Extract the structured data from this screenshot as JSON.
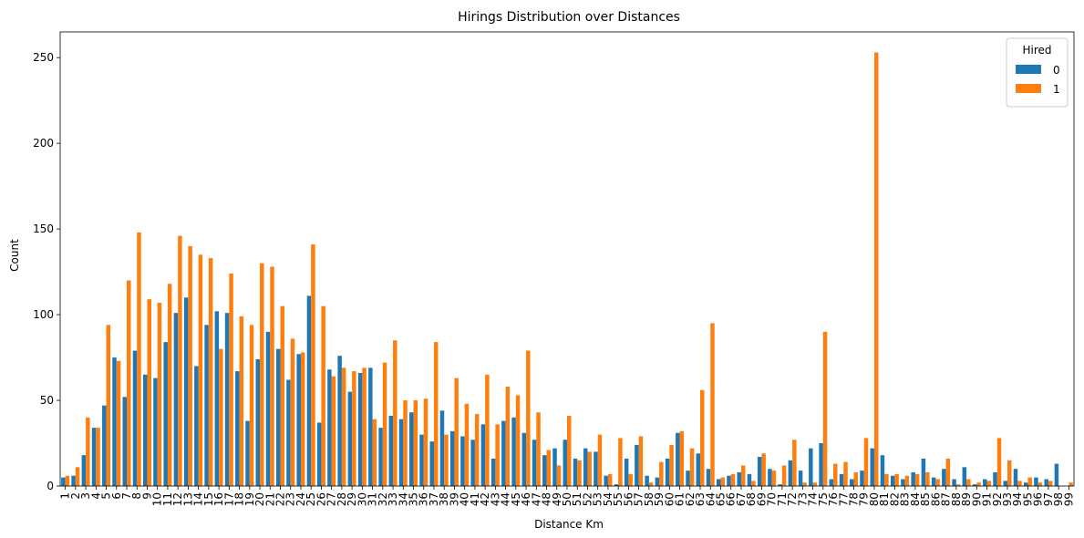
{
  "chart_data": {
    "type": "bar",
    "title": "Hirings Distribution over Distances",
    "xlabel": "Distance Km",
    "ylabel": "Count",
    "ylim": [
      0,
      265
    ],
    "yticks": [
      0,
      50,
      100,
      150,
      200,
      250
    ],
    "grid": false,
    "legend": {
      "title": "Hired",
      "placement": "top-right"
    },
    "categories": [
      "1",
      "2",
      "3",
      "4",
      "5",
      "6",
      "7",
      "8",
      "9",
      "10",
      "11",
      "12",
      "13",
      "14",
      "15",
      "16",
      "17",
      "18",
      "19",
      "20",
      "21",
      "22",
      "23",
      "24",
      "25",
      "26",
      "27",
      "28",
      "29",
      "30",
      "31",
      "32",
      "33",
      "34",
      "35",
      "36",
      "37",
      "38",
      "39",
      "40",
      "41",
      "42",
      "43",
      "44",
      "45",
      "46",
      "47",
      "48",
      "49",
      "50",
      "51",
      "52",
      "53",
      "54",
      "55",
      "56",
      "57",
      "58",
      "59",
      "60",
      "61",
      "62",
      "63",
      "64",
      "65",
      "66",
      "67",
      "68",
      "69",
      "70",
      "71",
      "72",
      "73",
      "74",
      "75",
      "76",
      "77",
      "78",
      "79",
      "80",
      "81",
      "82",
      "83",
      "84",
      "85",
      "86",
      "87",
      "88",
      "89",
      "90",
      "91",
      "92",
      "93",
      "94",
      "95",
      "96",
      "97",
      "98",
      "99"
    ],
    "series": [
      {
        "name": "0",
        "color": "#1f77b4",
        "values": [
          5,
          6,
          18,
          34,
          47,
          75,
          52,
          79,
          65,
          63,
          84,
          101,
          110,
          70,
          94,
          102,
          101,
          67,
          38,
          74,
          90,
          80,
          62,
          77,
          111,
          37,
          68,
          76,
          55,
          66,
          69,
          34,
          41,
          39,
          43,
          30,
          26,
          44,
          32,
          29,
          27,
          36,
          16,
          38,
          40,
          31,
          27,
          18,
          22,
          27,
          16,
          22,
          20,
          6,
          1,
          16,
          24,
          6,
          5,
          16,
          31,
          9,
          19,
          10,
          4,
          6,
          8,
          7,
          17,
          10,
          1,
          15,
          9,
          22,
          25,
          4,
          7,
          4,
          9,
          22,
          18,
          6,
          4,
          8,
          16,
          5,
          10,
          4,
          11,
          1,
          4,
          8,
          3,
          10,
          2,
          5,
          4,
          13,
          0
        ]
      },
      {
        "name": "1",
        "color": "#ff7f0e",
        "values": [
          6,
          11,
          40,
          34,
          94,
          73,
          120,
          148,
          109,
          107,
          118,
          146,
          140,
          135,
          133,
          80,
          124,
          99,
          94,
          130,
          128,
          105,
          86,
          78,
          141,
          105,
          64,
          69,
          67,
          69,
          39,
          72,
          85,
          50,
          50,
          51,
          84,
          30,
          63,
          48,
          42,
          65,
          36,
          58,
          53,
          79,
          43,
          21,
          12,
          41,
          15,
          20,
          30,
          7,
          28,
          7,
          29,
          2,
          14,
          24,
          32,
          22,
          56,
          95,
          5,
          7,
          12,
          3,
          19,
          9,
          12,
          27,
          2,
          2,
          90,
          13,
          14,
          8,
          28,
          253,
          7,
          7,
          6,
          7,
          8,
          4,
          16,
          1,
          4,
          2,
          3,
          28,
          15,
          3,
          5,
          2,
          3,
          0,
          2
        ]
      }
    ]
  }
}
